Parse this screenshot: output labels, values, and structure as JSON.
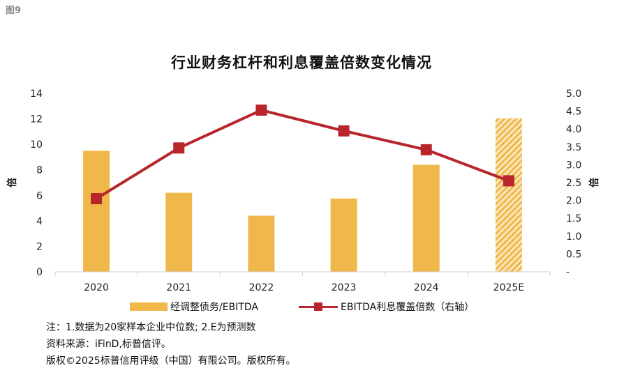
{
  "figure_label": "图9",
  "chart_data": {
    "type": "bar+line",
    "title": "行业财务杠杆和利息覆盖倍数变化情况",
    "categories": [
      "2020",
      "2021",
      "2022",
      "2023",
      "2024",
      "2025E"
    ],
    "series": [
      {
        "name": "经调整债务/EBITDA",
        "type": "bar",
        "axis": "left",
        "values": [
          9.5,
          6.2,
          4.4,
          5.75,
          8.4,
          12.05
        ],
        "color": "#f0b84a",
        "estimated_category": "2025E"
      },
      {
        "name": "EBITDA利息覆盖倍数（右轴）",
        "type": "line",
        "axis": "right",
        "values": [
          2.05,
          3.47,
          4.53,
          3.95,
          3.42,
          2.55
        ],
        "color": "#b8262c"
      }
    ],
    "y_left": {
      "label": "倍",
      "ylim": [
        0,
        14
      ],
      "ticks": [
        "0",
        "2",
        "4",
        "6",
        "8",
        "10",
        "12",
        "14"
      ]
    },
    "y_right": {
      "label": "倍",
      "ylim": [
        0,
        5
      ],
      "ticks": [
        "-",
        "0.5",
        "1.0",
        "1.5",
        "2.0",
        "2.5",
        "3.0",
        "3.5",
        "4.0",
        "4.5",
        "5.0"
      ]
    },
    "grid": false,
    "legend_position": "bottom"
  },
  "notes": [
    "注：1.数据为20家样本企业中位数; 2.E为预测数",
    "资料来源：iFinD,标普信评。",
    "版权©2025标普信用评级（中国）有限公司。版权所有。"
  ]
}
